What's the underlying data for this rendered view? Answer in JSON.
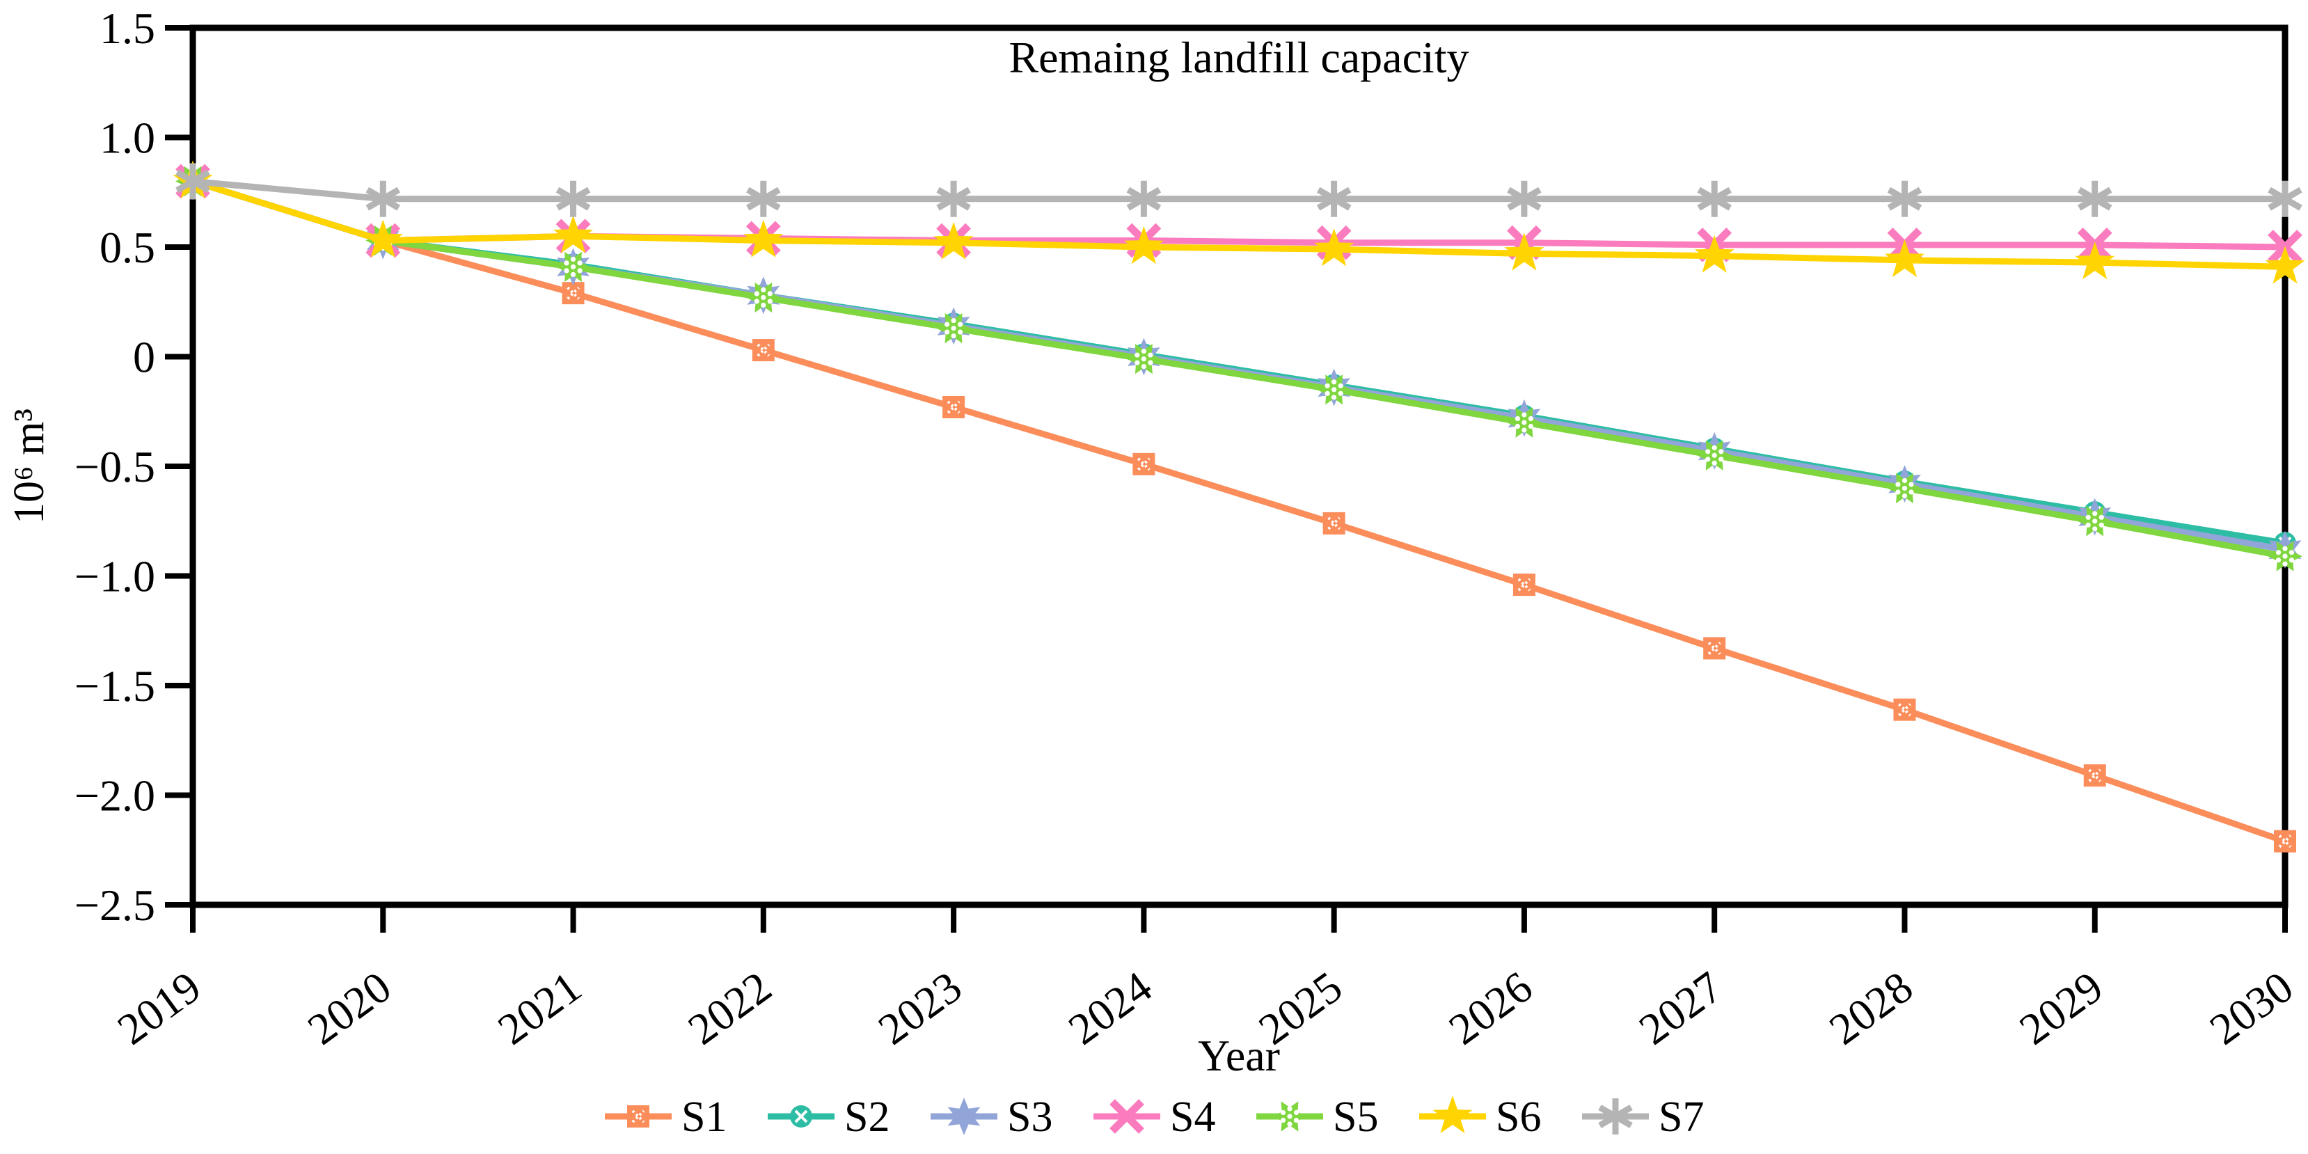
{
  "page": {
    "background": "#ffffff"
  },
  "chart_data": {
    "type": "line",
    "title": "Remaing landfill capacity",
    "xlabel": "Year",
    "ylabel": "10⁶ m³",
    "xlim": [
      2019,
      2030
    ],
    "ylim": [
      -2.5,
      1.5
    ],
    "grid": false,
    "legend_position": "bottom-center",
    "axis_color": "#000000",
    "x": [
      2019,
      2020,
      2021,
      2022,
      2023,
      2024,
      2025,
      2026,
      2027,
      2028,
      2029,
      2030
    ],
    "x_tick_labels": [
      "2019",
      "2020",
      "2021",
      "2022",
      "2023",
      "2024",
      "2025",
      "2026",
      "2027",
      "2028",
      "2029",
      "2030"
    ],
    "y_ticks": [
      1.5,
      1.0,
      0.5,
      0,
      -0.5,
      -1.0,
      -1.5,
      -2.0,
      -2.5
    ],
    "y_tick_labels": [
      "1.5",
      "1.0",
      "0.5",
      "0",
      "−0.5",
      "−1.0",
      "−1.5",
      "−2.0",
      "−2.5"
    ],
    "series": [
      {
        "name": "S1",
        "color": "#fb8d5b",
        "marker": "square-x",
        "values": [
          0.8,
          0.53,
          0.29,
          0.03,
          -0.23,
          -0.49,
          -0.76,
          -1.04,
          -1.33,
          -1.61,
          -1.91,
          -2.21
        ]
      },
      {
        "name": "S2",
        "color": "#2dbda4",
        "marker": "circle-x",
        "values": [
          0.8,
          0.53,
          0.42,
          0.28,
          0.15,
          0.01,
          -0.13,
          -0.27,
          -0.42,
          -0.57,
          -0.71,
          -0.85
        ]
      },
      {
        "name": "S3",
        "color": "#92a5d8",
        "marker": "star6",
        "values": [
          0.8,
          0.53,
          0.41,
          0.28,
          0.14,
          0.0,
          -0.14,
          -0.28,
          -0.43,
          -0.58,
          -0.73,
          -0.88
        ]
      },
      {
        "name": "S4",
        "color": "#fb7cbe",
        "marker": "x",
        "values": [
          0.8,
          0.53,
          0.55,
          0.54,
          0.53,
          0.53,
          0.52,
          0.52,
          0.51,
          0.51,
          0.51,
          0.5
        ]
      },
      {
        "name": "S5",
        "color": "#7fd63f",
        "marker": "star6-dots",
        "values": [
          0.8,
          0.53,
          0.41,
          0.27,
          0.13,
          -0.01,
          -0.15,
          -0.3,
          -0.45,
          -0.6,
          -0.75,
          -0.91
        ]
      },
      {
        "name": "S6",
        "color": "#ffd400",
        "marker": "star5",
        "values": [
          0.8,
          0.53,
          0.55,
          0.53,
          0.52,
          0.5,
          0.49,
          0.47,
          0.46,
          0.44,
          0.43,
          0.41
        ]
      },
      {
        "name": "S7",
        "color": "#b4b4b4",
        "marker": "asterisk",
        "values": [
          0.8,
          0.72,
          0.72,
          0.72,
          0.72,
          0.72,
          0.72,
          0.72,
          0.72,
          0.72,
          0.72,
          0.72
        ]
      }
    ]
  }
}
